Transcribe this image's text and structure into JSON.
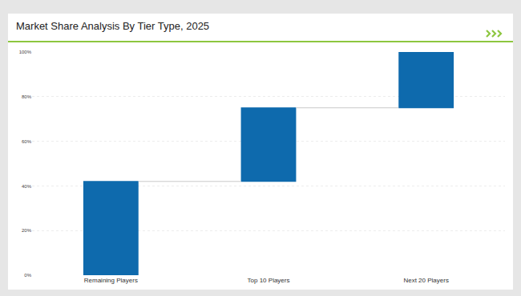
{
  "chart_data": {
    "type": "waterfall",
    "title": "Market Share Analysis By Tier Type, 2025",
    "categories": [
      "Remaining Players",
      "Top 10 Players",
      "Next 20 Players"
    ],
    "values": [
      42,
      33,
      25
    ],
    "color": "#0e6aad",
    "ylim": [
      0,
      100
    ],
    "yticks": [
      {
        "value": 0,
        "label": "0%"
      },
      {
        "value": 20,
        "label": "20%"
      },
      {
        "value": 40,
        "label": "40%"
      },
      {
        "value": 60,
        "label": "60%"
      },
      {
        "value": 80,
        "label": "80%"
      },
      {
        "value": 100,
        "label": "100%"
      }
    ],
    "grid": true
  }
}
